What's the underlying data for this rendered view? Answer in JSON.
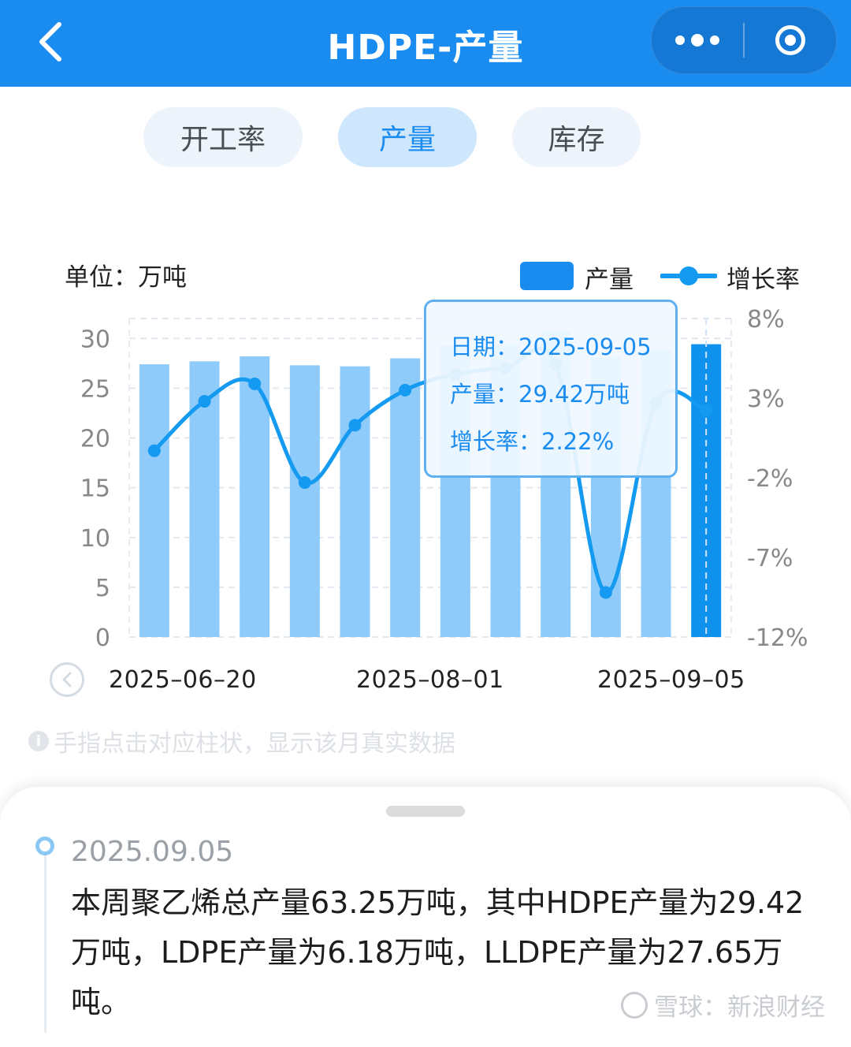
{
  "header": {
    "title": "HDPE-产量",
    "back_icon": "back-chevron-icon",
    "more_icon": "more-dots-icon",
    "close_icon": "target-circle-icon"
  },
  "tabs": [
    {
      "label": "开工率",
      "active": false
    },
    {
      "label": "产量",
      "active": true
    },
    {
      "label": "库存",
      "active": false
    }
  ],
  "chart_header": {
    "unit": "单位：万吨"
  },
  "legend": {
    "bar": "产量",
    "line": "增长率"
  },
  "tooltip": {
    "date": "日期：2025-09-05",
    "output": "产量：29.42万吨",
    "growth": "增长率：2.22%"
  },
  "x_axis_labels": [
    "2025–06–20",
    "2025–08–01",
    "2025–09–05"
  ],
  "hint": "手指点击对应柱状，显示该月真实数据",
  "post": {
    "date": "2025.09.05",
    "text": "本周聚乙烯总产量63.25万吨，其中HDPE产量为29.42万吨，LDPE产量为6.18万吨，LLDPE产量为27.65万吨。"
  },
  "watermark": "雪球：新浪财经",
  "colors": {
    "accent": "#1a8cf0",
    "bar_light": "#8ecbfa",
    "bar_selected": "#0f91ee",
    "line": "#149af0"
  },
  "chart_data": {
    "type": "bar",
    "bar_series": "产量",
    "line_series": "增长率",
    "values": [
      27.4,
      27.7,
      28.2,
      27.3,
      27.2,
      28.0,
      29.3,
      29.4,
      30.7,
      28.1,
      28.8,
      29.42
    ],
    "growth": [
      -0.3,
      2.8,
      3.9,
      -2.3,
      1.3,
      3.5,
      4.5,
      4.9,
      5.1,
      -9.2,
      2.7,
      2.22
    ],
    "selected_index": 11,
    "y_left": {
      "ticks": [
        "30",
        "25",
        "20",
        "15",
        "10",
        "5",
        "0"
      ],
      "min": 0,
      "max": 32
    },
    "y_right": {
      "ticks": [
        "8%",
        "3%",
        "-2%",
        "-7%",
        "-12%"
      ],
      "min": -12,
      "max": 8
    },
    "grid": true,
    "legend_position": "top-right"
  }
}
